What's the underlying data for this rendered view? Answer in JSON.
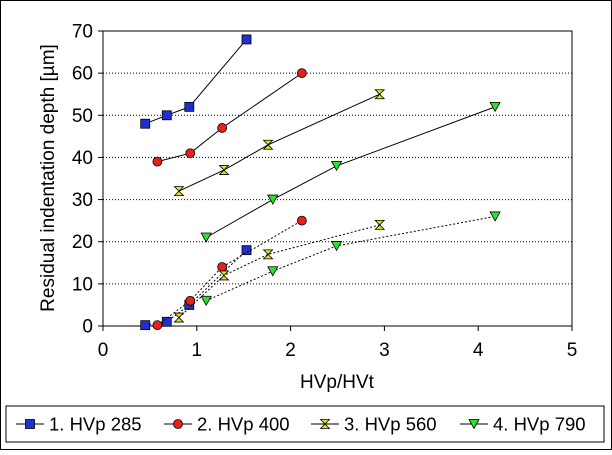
{
  "chart_data": {
    "type": "scatter",
    "xlabel": "HVp/HVt",
    "ylabel": "Residual indentation depth [µm]",
    "xlim": [
      0,
      5
    ],
    "ylim": [
      0,
      70
    ],
    "x_ticks": [
      "0",
      "1",
      "2",
      "3",
      "4",
      "5"
    ],
    "y_ticks": [
      "0",
      "10",
      "20",
      "30",
      "40",
      "50",
      "60",
      "70"
    ],
    "grid": "horizontal dotted",
    "legend_position": "bottom",
    "series": [
      {
        "name": "1. HVp 285",
        "color": "#1f2fd0",
        "marker": "square",
        "upper": [
          [
            0.45,
            48
          ],
          [
            0.68,
            50
          ],
          [
            0.92,
            52
          ],
          [
            1.53,
            68
          ]
        ],
        "lower": [
          [
            0.45,
            0.2
          ],
          [
            0.68,
            1
          ],
          [
            0.92,
            5
          ],
          [
            1.53,
            18
          ]
        ]
      },
      {
        "name": "2. HVp 400",
        "color": "#e8201c",
        "marker": "circle",
        "upper": [
          [
            0.58,
            39
          ],
          [
            0.93,
            41
          ],
          [
            1.27,
            47
          ],
          [
            2.12,
            60
          ]
        ],
        "lower": [
          [
            0.58,
            0.2
          ],
          [
            0.93,
            6
          ],
          [
            1.27,
            14
          ],
          [
            2.12,
            25
          ]
        ]
      },
      {
        "name": "3. HVp 560",
        "color": "#e0e020",
        "marker": "hourglass",
        "upper": [
          [
            0.81,
            32
          ],
          [
            1.29,
            37
          ],
          [
            1.76,
            43
          ],
          [
            2.95,
            55
          ]
        ],
        "lower": [
          [
            0.81,
            2
          ],
          [
            1.29,
            12
          ],
          [
            1.76,
            17
          ],
          [
            2.95,
            24
          ]
        ]
      },
      {
        "name": "4. HVp 790",
        "color": "#30e030",
        "marker": "triangle-down",
        "upper": [
          [
            1.1,
            21
          ],
          [
            1.81,
            30
          ],
          [
            2.49,
            38
          ],
          [
            4.18,
            52
          ]
        ],
        "lower": [
          [
            1.1,
            6
          ],
          [
            1.81,
            13
          ],
          [
            2.49,
            19
          ],
          [
            4.18,
            26
          ]
        ]
      }
    ]
  }
}
